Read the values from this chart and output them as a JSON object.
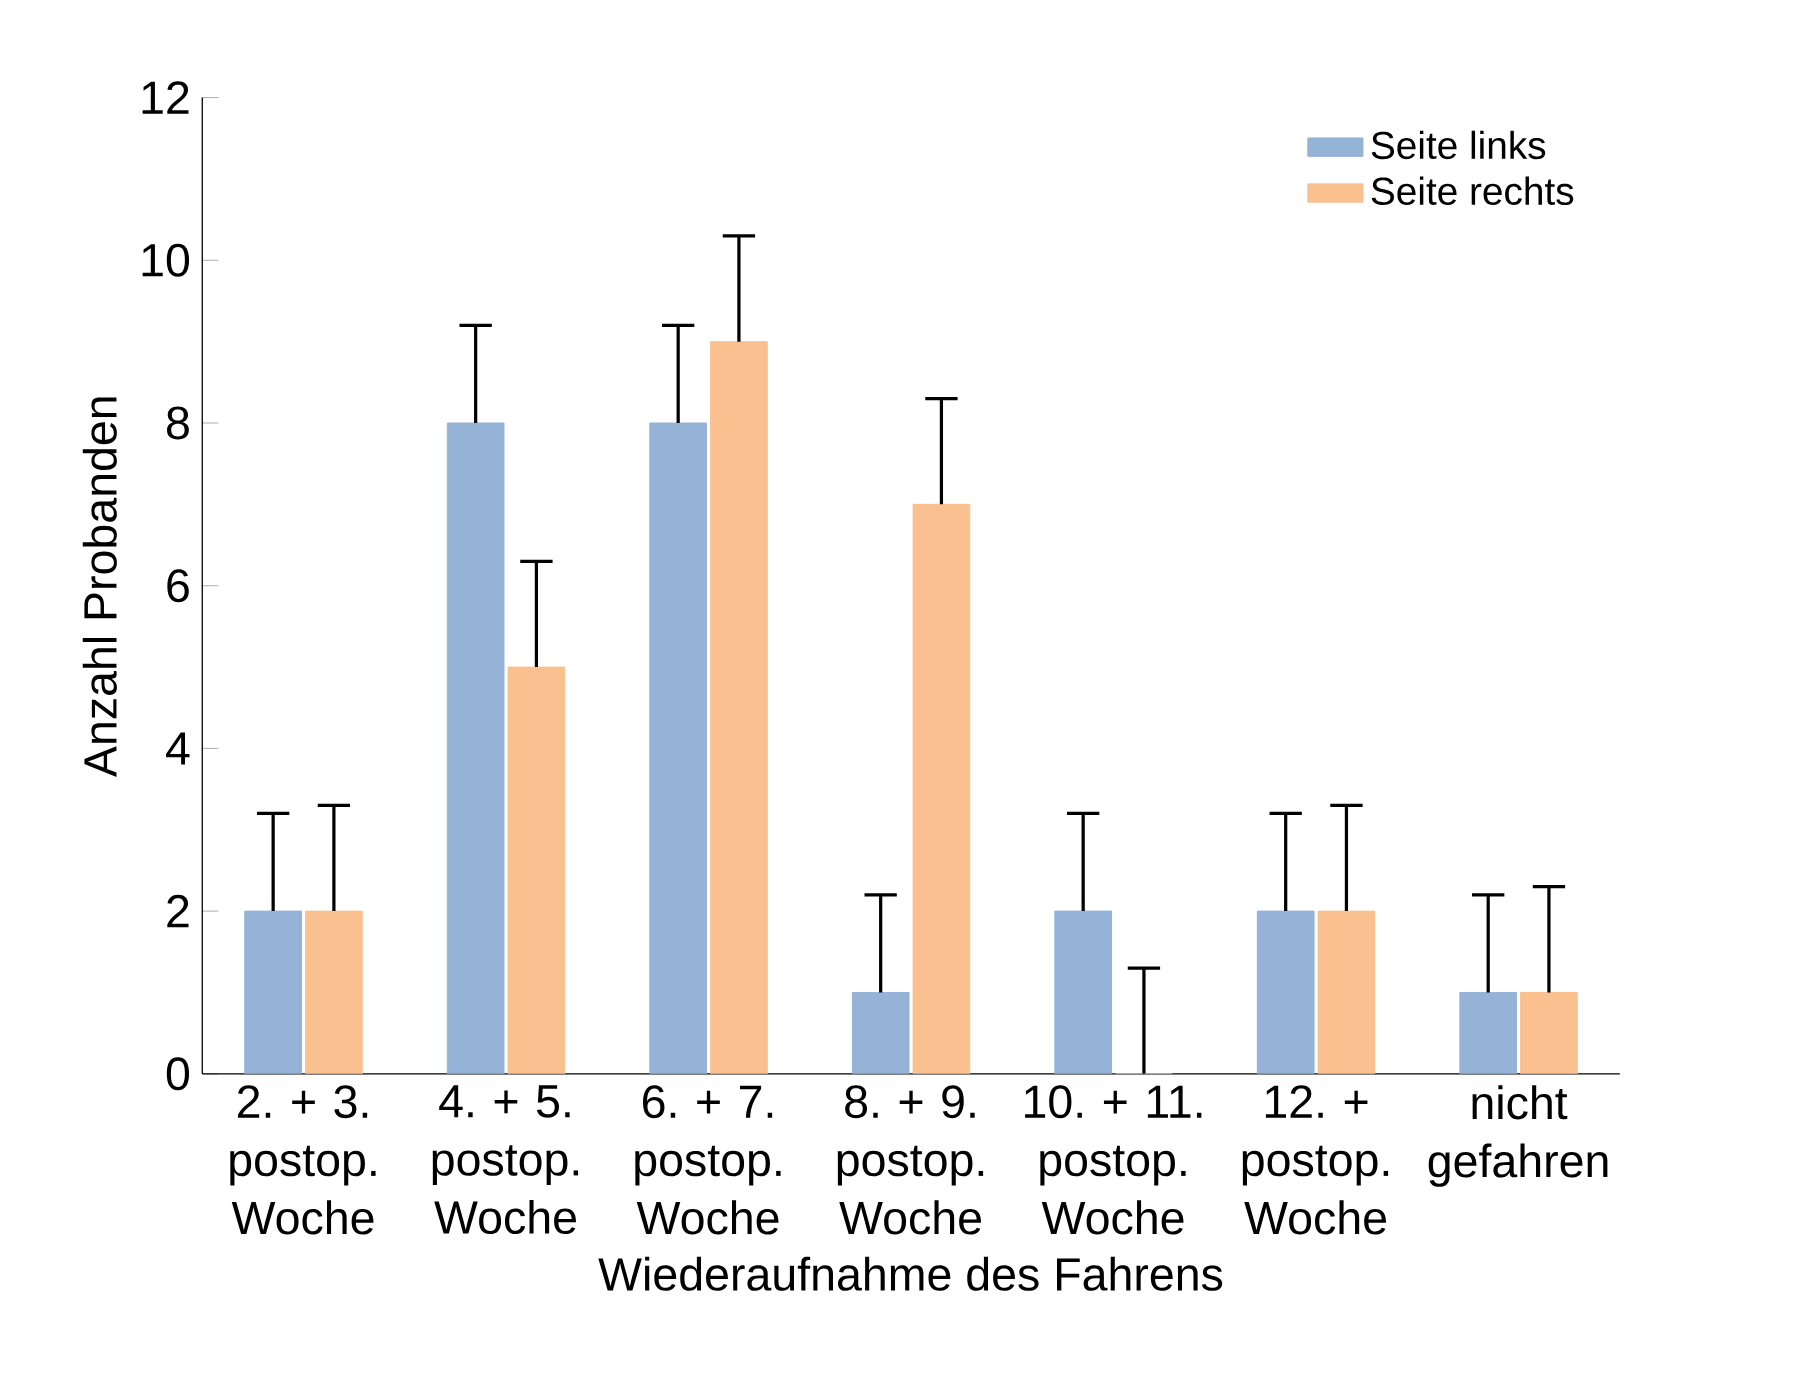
{
  "chart_data": {
    "type": "bar",
    "xlabel": "Wiederaufnahme des Fahrens",
    "ylabel": "Anzahl Probanden",
    "categories": [
      "2. + 3. postop. Woche",
      "4. + 5. postop. Woche",
      "6. + 7. postop. Woche",
      "8. + 9. postop. Woche",
      "10. + 11. postop. Woche",
      "12. + postop. Woche",
      "nicht gefahren"
    ],
    "series": [
      {
        "name": "Seite links",
        "color": "#95b3d7",
        "values": [
          2,
          8,
          8,
          1,
          2,
          2,
          1
        ],
        "errors": [
          [
            2,
            3.2
          ],
          [
            8,
            9.2
          ],
          [
            8,
            9.2
          ],
          [
            1,
            2.2
          ],
          [
            2,
            3.2
          ],
          [
            2,
            3.2
          ],
          [
            1,
            2.2
          ]
        ]
      },
      {
        "name": "Seite rechts",
        "color": "#fac090",
        "values": [
          2,
          5,
          9,
          7,
          0,
          2,
          1
        ],
        "errors": [
          [
            2,
            3.3
          ],
          [
            5,
            6.3
          ],
          [
            9,
            10.3
          ],
          [
            7,
            8.3
          ],
          [
            0,
            1.3
          ],
          [
            2,
            3.3
          ],
          [
            1,
            2.3
          ]
        ]
      }
    ],
    "ylim": [
      0,
      12
    ],
    "yticks": [
      0,
      2,
      4,
      6,
      8,
      10,
      12
    ],
    "grid": false,
    "legend": "top right"
  }
}
